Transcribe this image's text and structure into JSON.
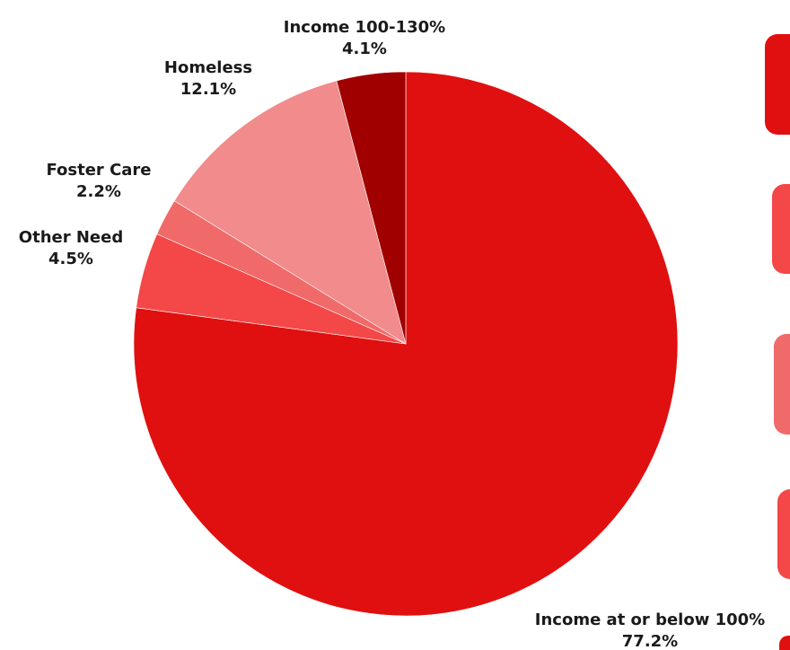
{
  "chart_data": {
    "type": "pie",
    "slices": [
      {
        "label": "Income at or below 100%",
        "value": 77.2,
        "display": "77.2%",
        "color": "#e01010"
      },
      {
        "label": "Other Need",
        "value": 4.5,
        "display": "4.5%",
        "color": "#f44747"
      },
      {
        "label": "Foster Care",
        "value": 2.2,
        "display": "2.2%",
        "color": "#f06a6a"
      },
      {
        "label": "Homeless",
        "value": 12.1,
        "display": "12.1%",
        "color": "#f28b8b"
      },
      {
        "label": "Income 100-130%",
        "value": 4.1,
        "display": "4.1%",
        "color": "#a00000"
      }
    ]
  },
  "side_cards": [
    {
      "color": "#e01010"
    },
    {
      "color": "#f44747"
    },
    {
      "color": "#f06a6a"
    },
    {
      "color": "#f44747"
    }
  ]
}
